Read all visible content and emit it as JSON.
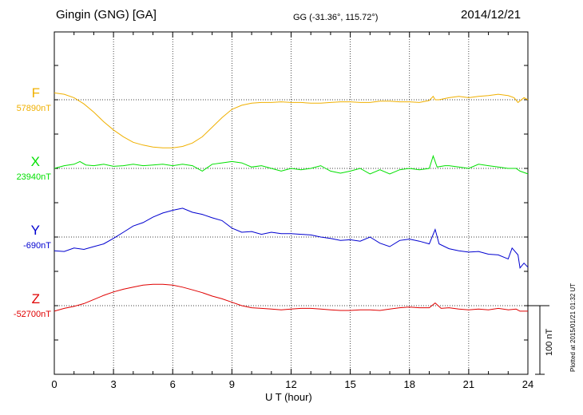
{
  "header": {
    "station": "Gingin (GNG)  [GA]",
    "coords": "GG (-31.36°, 115.72°)",
    "date": "2014/12/21"
  },
  "footer": {
    "plotted": "Plotted at 2015/01/21 01:32 UT",
    "scale": "100 nT"
  },
  "chart_data": {
    "type": "line",
    "xlabel": "U T (hour)",
    "xlim": [
      0,
      24
    ],
    "xticks": [
      "0",
      "3",
      "6",
      "9",
      "12",
      "15",
      "18",
      "21",
      "24"
    ],
    "scale_bar_nT": 100,
    "grid": true,
    "series": [
      {
        "name": "F",
        "baseline_label": "57890nT",
        "baseline_nT": 57890,
        "color": "#f0b000",
        "points": [
          [
            0,
            57900
          ],
          [
            0.5,
            57898
          ],
          [
            1,
            57893
          ],
          [
            1.5,
            57884
          ],
          [
            2,
            57872
          ],
          [
            2.5,
            57858
          ],
          [
            3,
            57846
          ],
          [
            3.5,
            57836
          ],
          [
            4,
            57828
          ],
          [
            4.5,
            57824
          ],
          [
            5,
            57821
          ],
          [
            5.5,
            57820
          ],
          [
            6,
            57820
          ],
          [
            6.5,
            57822
          ],
          [
            7,
            57827
          ],
          [
            7.5,
            57836
          ],
          [
            8,
            57850
          ],
          [
            8.5,
            57864
          ],
          [
            9,
            57876
          ],
          [
            9.5,
            57882
          ],
          [
            10,
            57885
          ],
          [
            10.5,
            57886
          ],
          [
            11,
            57886
          ],
          [
            11.5,
            57887
          ],
          [
            12,
            57886
          ],
          [
            12.5,
            57886
          ],
          [
            13,
            57885
          ],
          [
            13.5,
            57885
          ],
          [
            14,
            57886
          ],
          [
            14.5,
            57887
          ],
          [
            15,
            57887
          ],
          [
            15.5,
            57886
          ],
          [
            16,
            57886
          ],
          [
            16.5,
            57888
          ],
          [
            17,
            57888
          ],
          [
            17.5,
            57887
          ],
          [
            18,
            57887
          ],
          [
            18.5,
            57886
          ],
          [
            19,
            57889
          ],
          [
            19.2,
            57895
          ],
          [
            19.3,
            57890
          ],
          [
            19.5,
            57890
          ],
          [
            20,
            57893
          ],
          [
            20.5,
            57895
          ],
          [
            21,
            57893
          ],
          [
            21.5,
            57895
          ],
          [
            22,
            57896
          ],
          [
            22.5,
            57898
          ],
          [
            23,
            57896
          ],
          [
            23.3,
            57893
          ],
          [
            23.5,
            57886
          ],
          [
            23.8,
            57893
          ],
          [
            24,
            57890
          ]
        ]
      },
      {
        "name": "X",
        "baseline_label": "23940nT",
        "baseline_nT": 23940,
        "color": "#00e000",
        "points": [
          [
            0,
            23940
          ],
          [
            0.5,
            23944
          ],
          [
            1,
            23946
          ],
          [
            1.3,
            23950
          ],
          [
            1.6,
            23945
          ],
          [
            2,
            23944
          ],
          [
            2.5,
            23946
          ],
          [
            3,
            23943
          ],
          [
            3.5,
            23944
          ],
          [
            4,
            23946
          ],
          [
            4.5,
            23944
          ],
          [
            5,
            23945
          ],
          [
            5.5,
            23946
          ],
          [
            6,
            23944
          ],
          [
            6.5,
            23946
          ],
          [
            7,
            23944
          ],
          [
            7.5,
            23936
          ],
          [
            8,
            23946
          ],
          [
            8.5,
            23948
          ],
          [
            9,
            23950
          ],
          [
            9.5,
            23948
          ],
          [
            10,
            23942
          ],
          [
            10.5,
            23944
          ],
          [
            11,
            23940
          ],
          [
            11.5,
            23936
          ],
          [
            12,
            23940
          ],
          [
            12.5,
            23938
          ],
          [
            13,
            23940
          ],
          [
            13.5,
            23944
          ],
          [
            14,
            23936
          ],
          [
            14.5,
            23933
          ],
          [
            15,
            23936
          ],
          [
            15.5,
            23940
          ],
          [
            16,
            23932
          ],
          [
            16.5,
            23938
          ],
          [
            17,
            23932
          ],
          [
            17.5,
            23938
          ],
          [
            18,
            23940
          ],
          [
            18.5,
            23938
          ],
          [
            19,
            23940
          ],
          [
            19.2,
            23958
          ],
          [
            19.4,
            23942
          ],
          [
            19.8,
            23944
          ],
          [
            20,
            23944
          ],
          [
            20.5,
            23942
          ],
          [
            21,
            23940
          ],
          [
            21.5,
            23946
          ],
          [
            22,
            23944
          ],
          [
            22.5,
            23942
          ],
          [
            23,
            23940
          ],
          [
            23.4,
            23940
          ],
          [
            23.6,
            23936
          ],
          [
            24,
            23932
          ]
        ]
      },
      {
        "name": "Y",
        "baseline_label": "-690nT",
        "baseline_nT": -690,
        "color": "#0000d0",
        "points": [
          [
            0,
            -710
          ],
          [
            0.5,
            -711
          ],
          [
            1,
            -706
          ],
          [
            1.5,
            -708
          ],
          [
            2,
            -704
          ],
          [
            2.5,
            -700
          ],
          [
            3,
            -692
          ],
          [
            3.5,
            -683
          ],
          [
            4,
            -674
          ],
          [
            4.5,
            -669
          ],
          [
            5,
            -661
          ],
          [
            5.5,
            -655
          ],
          [
            6,
            -651
          ],
          [
            6.5,
            -648
          ],
          [
            7,
            -654
          ],
          [
            7.5,
            -657
          ],
          [
            8,
            -662
          ],
          [
            8.5,
            -666
          ],
          [
            9,
            -677
          ],
          [
            9.5,
            -683
          ],
          [
            10,
            -682
          ],
          [
            10.5,
            -686
          ],
          [
            11,
            -683
          ],
          [
            11.5,
            -685
          ],
          [
            12,
            -685
          ],
          [
            12.5,
            -686
          ],
          [
            13,
            -687
          ],
          [
            13.5,
            -690
          ],
          [
            14,
            -692
          ],
          [
            14.5,
            -695
          ],
          [
            15,
            -694
          ],
          [
            15.5,
            -696
          ],
          [
            16,
            -690
          ],
          [
            16.5,
            -699
          ],
          [
            17,
            -704
          ],
          [
            17.5,
            -695
          ],
          [
            18,
            -693
          ],
          [
            18.5,
            -696
          ],
          [
            19,
            -700
          ],
          [
            19.3,
            -679
          ],
          [
            19.5,
            -700
          ],
          [
            20,
            -707
          ],
          [
            20.5,
            -710
          ],
          [
            21,
            -712
          ],
          [
            21.5,
            -711
          ],
          [
            22,
            -715
          ],
          [
            22.5,
            -716
          ],
          [
            23,
            -722
          ],
          [
            23.2,
            -706
          ],
          [
            23.5,
            -716
          ],
          [
            23.6,
            -735
          ],
          [
            23.8,
            -728
          ],
          [
            24,
            -734
          ]
        ]
      },
      {
        "name": "Z",
        "baseline_label": "-52700nT",
        "baseline_nT": -52700,
        "color": "#e00000",
        "points": [
          [
            0,
            -52708
          ],
          [
            0.5,
            -52704
          ],
          [
            1,
            -52701
          ],
          [
            1.5,
            -52697
          ],
          [
            2,
            -52691
          ],
          [
            2.5,
            -52685
          ],
          [
            3,
            -52680
          ],
          [
            3.5,
            -52676
          ],
          [
            4,
            -52673
          ],
          [
            4.5,
            -52670
          ],
          [
            5,
            -52669
          ],
          [
            5.5,
            -52669
          ],
          [
            6,
            -52670
          ],
          [
            6.5,
            -52673
          ],
          [
            7,
            -52677
          ],
          [
            7.5,
            -52681
          ],
          [
            8,
            -52686
          ],
          [
            8.5,
            -52690
          ],
          [
            9,
            -52695
          ],
          [
            9.5,
            -52700
          ],
          [
            10,
            -52703
          ],
          [
            10.5,
            -52704
          ],
          [
            11,
            -52705
          ],
          [
            11.5,
            -52706
          ],
          [
            12,
            -52705
          ],
          [
            12.5,
            -52704
          ],
          [
            13,
            -52704
          ],
          [
            13.5,
            -52705
          ],
          [
            14,
            -52706
          ],
          [
            14.5,
            -52707
          ],
          [
            15,
            -52707
          ],
          [
            15.5,
            -52706
          ],
          [
            16,
            -52706
          ],
          [
            16.5,
            -52707
          ],
          [
            17,
            -52705
          ],
          [
            17.5,
            -52703
          ],
          [
            18,
            -52702
          ],
          [
            18.5,
            -52703
          ],
          [
            19,
            -52703
          ],
          [
            19.3,
            -52696
          ],
          [
            19.6,
            -52704
          ],
          [
            20,
            -52703
          ],
          [
            20.5,
            -52705
          ],
          [
            21,
            -52706
          ],
          [
            21.5,
            -52705
          ],
          [
            22,
            -52706
          ],
          [
            22.5,
            -52704
          ],
          [
            23,
            -52706
          ],
          [
            23.4,
            -52705
          ],
          [
            23.6,
            -52708
          ],
          [
            24,
            -52708
          ]
        ]
      }
    ]
  }
}
